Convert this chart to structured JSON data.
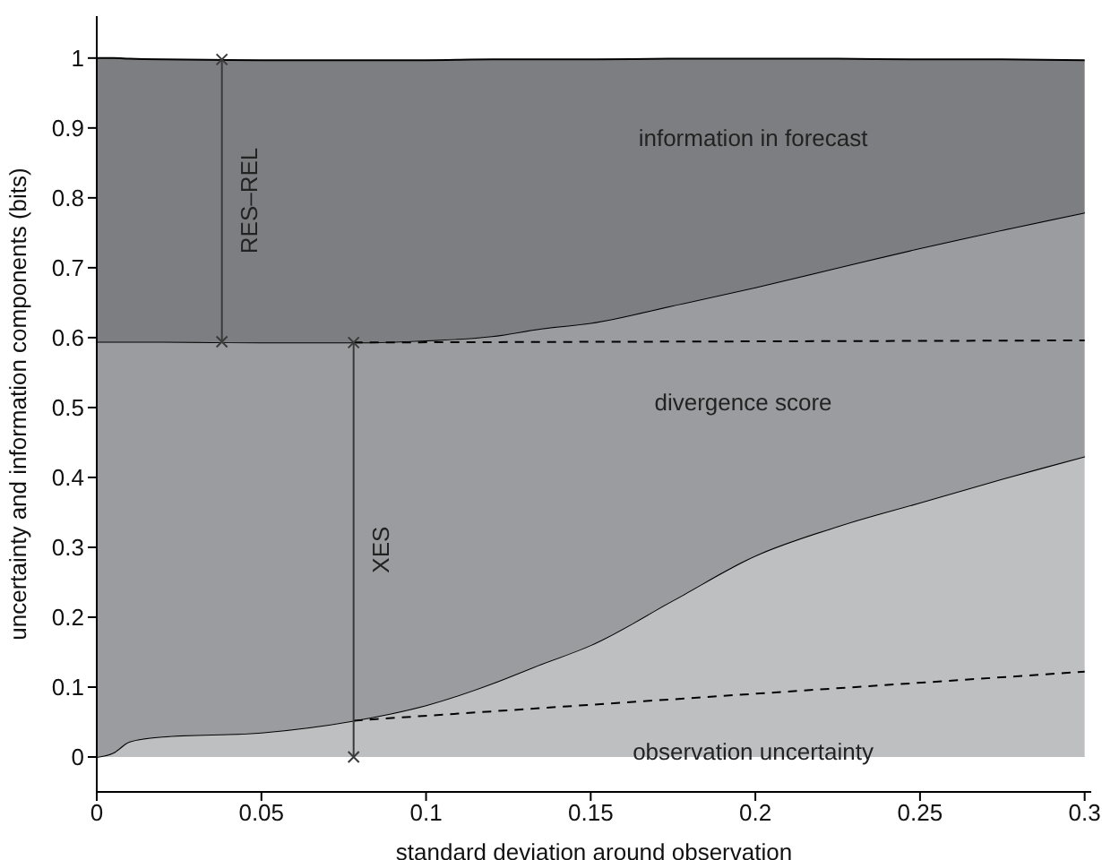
{
  "chart_data": {
    "type": "area",
    "xlabel": "standard deviation around observation",
    "ylabel": "uncertainty and information components (bits)",
    "x": [
      0,
      0.005,
      0.01,
      0.02,
      0.05,
      0.078,
      0.1,
      0.12,
      0.135,
      0.15,
      0.175,
      0.2,
      0.225,
      0.25,
      0.275,
      0.3
    ],
    "series": [
      {
        "color": "#bebfc1",
        "values": [
          0,
          0.006,
          0.022,
          0.029,
          0.035,
          0.052,
          0.074,
          0.105,
          0.133,
          0.16,
          0.224,
          0.288,
          0.33,
          0.364,
          0.398,
          0.43
        ]
      },
      {
        "color": "#9b9ca0",
        "values": [
          0.594,
          0.588,
          0.572,
          0.565,
          0.558,
          0.541,
          0.522,
          0.497,
          0.48,
          0.461,
          0.422,
          0.384,
          0.37,
          0.364,
          0.356,
          0.349
        ]
      },
      {
        "color": "#7d7e81",
        "values": [
          0.406,
          0.406,
          0.405,
          0.404,
          0.404,
          0.404,
          0.401,
          0.396,
          0.385,
          0.377,
          0.353,
          0.327,
          0.299,
          0.27,
          0.244,
          0.218
        ]
      },
      {
        "type": "line",
        "color": "#000000",
        "line_style": "dashed",
        "x": [
          0.078,
          0.3
        ],
        "values": [
          0.593,
          0.596
        ]
      },
      {
        "type": "line",
        "color": "#000000",
        "line_style": "dashed",
        "x": [
          0.078,
          0.3
        ],
        "values": [
          0.052,
          0.122
        ]
      },
      {
        "type": "line",
        "name": "RES–REL",
        "color": "#3a3a3a",
        "marker": "cross",
        "x": [
          0.038,
          0.038
        ],
        "values": [
          0.594,
          0.998
        ]
      },
      {
        "type": "line",
        "name": "XES",
        "color": "#3a3a3a",
        "marker": "cross",
        "x": [
          0.078,
          0.078
        ],
        "values": [
          0,
          0.593
        ]
      }
    ],
    "annotations": [
      "information in forecast",
      "divergence score",
      "observation uncertainty"
    ],
    "stacked": true,
    "xlim": [
      0,
      0.302
    ],
    "xticks": [
      0,
      0.05,
      0.1,
      0.15,
      0.2,
      0.25,
      0.3
    ],
    "ylim": [
      -0.05,
      1.06
    ],
    "yticks": [
      0,
      0.1,
      0.2,
      0.3,
      0.4,
      0.5,
      0.6,
      0.7,
      0.8,
      0.9,
      1
    ]
  }
}
